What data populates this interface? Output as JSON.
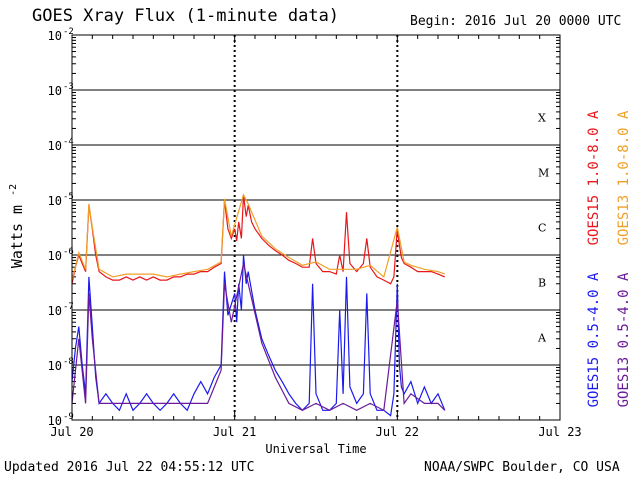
{
  "header": {
    "title": "GOES Xray Flux (1-minute data)",
    "begin_label": "Begin:",
    "begin_value": "2016 Jul 20 0000 UTC"
  },
  "footer": {
    "updated": "Updated 2016 Jul 22 04:55:12 UTC",
    "credit": "NOAA/SWPC Boulder, CO USA"
  },
  "chart_data": {
    "type": "line",
    "title": "GOES Xray Flux (1-minute data)",
    "xlabel": "Universal Time",
    "ylabel": "Watts m",
    "ylabel_exponent": "-2",
    "y_scale": "log",
    "ylim": [
      1e-09,
      0.01
    ],
    "xlim_hours": [
      0,
      72
    ],
    "x_ticks": [
      {
        "hour": 0,
        "label": "Jul 20"
      },
      {
        "hour": 24,
        "label": "Jul 21"
      },
      {
        "hour": 48,
        "label": "Jul 22"
      },
      {
        "hour": 72,
        "label": "Jul 23"
      }
    ],
    "y_ticks": [
      {
        "exp": -9,
        "base": "10",
        "sup": "-9"
      },
      {
        "exp": -8,
        "base": "10",
        "sup": "-8"
      },
      {
        "exp": -7,
        "base": "10",
        "sup": "-7"
      },
      {
        "exp": -6,
        "base": "10",
        "sup": "-6"
      },
      {
        "exp": -5,
        "base": "10",
        "sup": "-5"
      },
      {
        "exp": -4,
        "base": "10",
        "sup": "-4"
      },
      {
        "exp": -3,
        "base": "10",
        "sup": "-3"
      },
      {
        "exp": -2,
        "base": "10",
        "sup": "-2"
      }
    ],
    "flare_classes": [
      {
        "label": "A",
        "exp": -7.5
      },
      {
        "label": "B",
        "exp": -6.5
      },
      {
        "label": "C",
        "exp": -5.5
      },
      {
        "label": "M",
        "exp": -4.5
      },
      {
        "label": "X",
        "exp": -3.5
      }
    ],
    "grid": "horizontal lines at each decade; dotted vertical day separators",
    "legend_placement": "right, rotated vertical labels",
    "series": [
      {
        "name": "GOES15 1.0-8.0 A",
        "color": "#e8171b",
        "points": [
          [
            0,
            3e-07
          ],
          [
            0.5,
            6e-07
          ],
          [
            1,
            1e-06
          ],
          [
            1.5,
            7e-07
          ],
          [
            2,
            5e-07
          ],
          [
            2.5,
            8e-06
          ],
          [
            3,
            3e-06
          ],
          [
            3.5,
            1e-06
          ],
          [
            4,
            5e-07
          ],
          [
            5,
            4e-07
          ],
          [
            6,
            3.5e-07
          ],
          [
            7,
            3.5e-07
          ],
          [
            8,
            4e-07
          ],
          [
            9,
            3.5e-07
          ],
          [
            10,
            4e-07
          ],
          [
            11,
            3.5e-07
          ],
          [
            12,
            4e-07
          ],
          [
            13,
            3.5e-07
          ],
          [
            14,
            3.5e-07
          ],
          [
            15,
            4e-07
          ],
          [
            16,
            4e-07
          ],
          [
            17,
            4.5e-07
          ],
          [
            18,
            4.5e-07
          ],
          [
            19,
            5e-07
          ],
          [
            20,
            5e-07
          ],
          [
            21,
            6e-07
          ],
          [
            22,
            7e-07
          ],
          [
            22.5,
            1e-05
          ],
          [
            23,
            3e-06
          ],
          [
            23.5,
            2e-06
          ],
          [
            24,
            3e-06
          ],
          [
            24.3,
            1.8e-06
          ],
          [
            24.6,
            4e-06
          ],
          [
            25,
            2e-06
          ],
          [
            25.3,
            1.2e-05
          ],
          [
            25.7,
            5e-06
          ],
          [
            26,
            8e-06
          ],
          [
            26.5,
            4e-06
          ],
          [
            27,
            3e-06
          ],
          [
            28,
            2e-06
          ],
          [
            29,
            1.5e-06
          ],
          [
            30,
            1.2e-06
          ],
          [
            31,
            1e-06
          ],
          [
            32,
            8e-07
          ],
          [
            33,
            7e-07
          ],
          [
            34,
            6e-07
          ],
          [
            35,
            6e-07
          ],
          [
            35.5,
            2e-06
          ],
          [
            36,
            7e-07
          ],
          [
            37,
            5e-07
          ],
          [
            38,
            5e-07
          ],
          [
            39,
            4.5e-07
          ],
          [
            39.5,
            1e-06
          ],
          [
            40,
            5e-07
          ],
          [
            40.5,
            6e-06
          ],
          [
            41,
            7e-07
          ],
          [
            42,
            5e-07
          ],
          [
            43,
            7e-07
          ],
          [
            43.5,
            2e-06
          ],
          [
            44,
            6e-07
          ],
          [
            45,
            4e-07
          ],
          [
            46,
            3.5e-07
          ],
          [
            47,
            3e-07
          ],
          [
            47.5,
            4e-07
          ],
          [
            48,
            3e-06
          ],
          [
            48.3,
            1.5e-06
          ],
          [
            48.6,
            9e-07
          ],
          [
            49,
            7e-07
          ],
          [
            50,
            6e-07
          ],
          [
            51,
            5e-07
          ],
          [
            52,
            5e-07
          ],
          [
            53,
            5e-07
          ],
          [
            54,
            4.5e-07
          ],
          [
            55,
            4e-07
          ]
        ]
      },
      {
        "name": "GOES13 1.0-8.0 A",
        "color": "#f0a028",
        "points": [
          [
            0,
            3.5e-07
          ],
          [
            1,
            1.1e-06
          ],
          [
            2,
            5.5e-07
          ],
          [
            2.5,
            8.5e-06
          ],
          [
            3,
            3.2e-06
          ],
          [
            4,
            5.5e-07
          ],
          [
            6,
            4e-07
          ],
          [
            8,
            4.5e-07
          ],
          [
            10,
            4.5e-07
          ],
          [
            12,
            4.5e-07
          ],
          [
            14,
            4e-07
          ],
          [
            16,
            4.5e-07
          ],
          [
            18,
            5e-07
          ],
          [
            20,
            5.5e-07
          ],
          [
            22,
            7.5e-07
          ],
          [
            22.5,
            1.05e-05
          ],
          [
            23.5,
            2.2e-06
          ],
          [
            25.3,
            1.25e-05
          ],
          [
            26,
            8.5e-06
          ],
          [
            28,
            2.2e-06
          ],
          [
            30,
            1.3e-06
          ],
          [
            32,
            9e-07
          ],
          [
            34,
            6.5e-07
          ],
          [
            36,
            7.5e-07
          ],
          [
            38,
            5.5e-07
          ],
          [
            40,
            5.5e-07
          ],
          [
            42,
            5.5e-07
          ],
          [
            44,
            6.5e-07
          ],
          [
            46,
            4e-07
          ],
          [
            48,
            3.2e-06
          ],
          [
            49,
            7.5e-07
          ],
          [
            50,
            6.5e-07
          ],
          [
            52,
            5.5e-07
          ],
          [
            54,
            5e-07
          ],
          [
            55,
            4.5e-07
          ]
        ]
      },
      {
        "name": "GOES15 0.5-4.0 A",
        "color": "#1a1aee",
        "points": [
          [
            0,
            5e-09
          ],
          [
            0.5,
            2e-08
          ],
          [
            1,
            5e-08
          ],
          [
            1.5,
            1e-08
          ],
          [
            2,
            3e-09
          ],
          [
            2.5,
            4e-07
          ],
          [
            3,
            5e-08
          ],
          [
            3.5,
            6e-09
          ],
          [
            4,
            2e-09
          ],
          [
            5,
            3e-09
          ],
          [
            6,
            2e-09
          ],
          [
            7,
            1.5e-09
          ],
          [
            8,
            3e-09
          ],
          [
            9,
            1.5e-09
          ],
          [
            10,
            2e-09
          ],
          [
            11,
            3e-09
          ],
          [
            12,
            2e-09
          ],
          [
            13,
            1.5e-09
          ],
          [
            14,
            2e-09
          ],
          [
            15,
            3e-09
          ],
          [
            16,
            2e-09
          ],
          [
            17,
            1.5e-09
          ],
          [
            18,
            3e-09
          ],
          [
            19,
            5e-09
          ],
          [
            20,
            3e-09
          ],
          [
            21,
            6e-09
          ],
          [
            22,
            1e-08
          ],
          [
            22.5,
            5e-07
          ],
          [
            23,
            8e-08
          ],
          [
            24,
            2e-07
          ],
          [
            24.3,
            6e-08
          ],
          [
            24.6,
            3e-07
          ],
          [
            25,
            1e-07
          ],
          [
            25.3,
            1e-06
          ],
          [
            25.7,
            3e-07
          ],
          [
            26,
            5e-07
          ],
          [
            27,
            1e-07
          ],
          [
            28,
            3e-08
          ],
          [
            29,
            1.5e-08
          ],
          [
            30,
            8e-09
          ],
          [
            31,
            5e-09
          ],
          [
            32,
            3e-09
          ],
          [
            33,
            2e-09
          ],
          [
            34,
            1.5e-09
          ],
          [
            35,
            2e-09
          ],
          [
            35.5,
            3e-07
          ],
          [
            36,
            3e-09
          ],
          [
            37,
            1.5e-09
          ],
          [
            38,
            1.5e-09
          ],
          [
            39,
            2e-09
          ],
          [
            39.5,
            1e-07
          ],
          [
            40,
            3e-09
          ],
          [
            40.5,
            4e-07
          ],
          [
            41,
            4e-09
          ],
          [
            42,
            2e-09
          ],
          [
            43,
            3e-09
          ],
          [
            43.5,
            2e-07
          ],
          [
            44,
            3e-09
          ],
          [
            45,
            1.5e-09
          ],
          [
            46,
            1.5e-09
          ],
          [
            47,
            1.2e-09
          ],
          [
            47.5,
            3e-09
          ],
          [
            48,
            3e-07
          ],
          [
            48.3,
            1e-08
          ],
          [
            48.6,
            4e-09
          ],
          [
            49,
            3e-09
          ],
          [
            50,
            5e-09
          ],
          [
            51,
            2e-09
          ],
          [
            52,
            4e-09
          ],
          [
            53,
            2e-09
          ],
          [
            54,
            3e-09
          ],
          [
            55,
            1.5e-09
          ]
        ]
      },
      {
        "name": "GOES13 0.5-4.0 A",
        "color": "#6a1a9a",
        "points": [
          [
            0,
            2e-09
          ],
          [
            1,
            3e-08
          ],
          [
            2,
            2e-09
          ],
          [
            2.5,
            2e-07
          ],
          [
            3,
            3e-08
          ],
          [
            4,
            2e-09
          ],
          [
            6,
            2e-09
          ],
          [
            8,
            2e-09
          ],
          [
            10,
            2e-09
          ],
          [
            12,
            2e-09
          ],
          [
            14,
            2e-09
          ],
          [
            16,
            2e-09
          ],
          [
            18,
            2e-09
          ],
          [
            20,
            2e-09
          ],
          [
            22,
            8e-09
          ],
          [
            22.5,
            3e-07
          ],
          [
            23.5,
            6e-08
          ],
          [
            25.3,
            7e-07
          ],
          [
            26,
            3e-07
          ],
          [
            28,
            2.5e-08
          ],
          [
            30,
            6e-09
          ],
          [
            32,
            2e-09
          ],
          [
            34,
            1.5e-09
          ],
          [
            36,
            2e-09
          ],
          [
            38,
            1.5e-09
          ],
          [
            40,
            2e-09
          ],
          [
            42,
            1.5e-09
          ],
          [
            44,
            2e-09
          ],
          [
            46,
            1.5e-09
          ],
          [
            48,
            1.5e-07
          ],
          [
            49,
            2e-09
          ],
          [
            50,
            3e-09
          ],
          [
            52,
            2e-09
          ],
          [
            54,
            2e-09
          ],
          [
            55,
            1.5e-09
          ]
        ]
      }
    ]
  }
}
